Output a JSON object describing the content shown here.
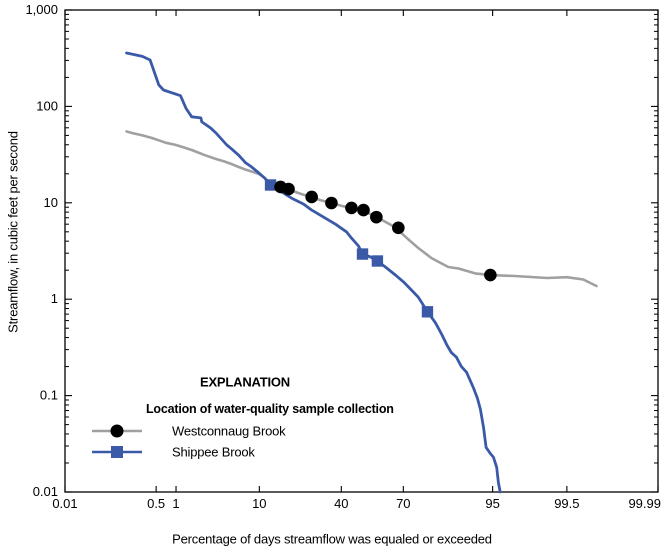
{
  "figure": {
    "y_axis_title": "Streamflow, in cubic feet per second",
    "x_axis_title": "Percentage of days streamflow was equaled or exceeded"
  },
  "legend": {
    "title": "EXPLANATION",
    "subtitle": "Location of water-quality sample collection",
    "entries": [
      {
        "label": "Westconnaug Brook",
        "marker": "circle",
        "marker_color": "#000000",
        "line_color": "#a0a0a0"
      },
      {
        "label": "Shippee Brook",
        "marker": "square",
        "marker_color": "#3a5aa8",
        "line_color": "#3a5aa8"
      }
    ]
  },
  "colors": {
    "westconnaug_line": "#a0a0a0",
    "shippee_line": "#3a5aa8",
    "sample_circle": "#000000",
    "sample_square": "#3a5aa8",
    "frame": "#000000",
    "text": "#000000"
  },
  "chart_data": {
    "type": "line",
    "x_scale": "normal-probability",
    "y_scale": "log",
    "xlim": [
      0.01,
      99.99
    ],
    "ylim": [
      0.01,
      1000
    ],
    "grid": false,
    "legend_position": "inside-lower-left",
    "x_ticks": [
      0.01,
      0.5,
      1,
      10,
      40,
      70,
      95,
      99.5,
      99.99
    ],
    "x_tick_labels": [
      "0.01",
      "0.5",
      "1",
      "10",
      "40",
      "70",
      "95",
      "99.5",
      "99.99"
    ],
    "y_ticks": [
      1000,
      100,
      10,
      1,
      0.1,
      0.01
    ],
    "y_tick_labels": [
      "1,000",
      "100",
      "10",
      "1",
      "0.1",
      "0.01"
    ],
    "xlabel": "Percentage of days streamflow was equaled or exceeded",
    "ylabel": "Streamflow, in cubic feet per second",
    "series": [
      {
        "name": "Westconnaug Brook",
        "color": "#a0a0a0",
        "points": [
          [
            0.16,
            55
          ],
          [
            0.2,
            53
          ],
          [
            0.3,
            50
          ],
          [
            0.43,
            47
          ],
          [
            0.55,
            44.5
          ],
          [
            0.7,
            42
          ],
          [
            1.0,
            39.8
          ],
          [
            1.3,
            37.5
          ],
          [
            1.66,
            35.3
          ],
          [
            2.4,
            31.5
          ],
          [
            3.4,
            28.5
          ],
          [
            4.2,
            27
          ],
          [
            5,
            25.5
          ],
          [
            6,
            23.8
          ],
          [
            7,
            22.4
          ],
          [
            8.5,
            21
          ],
          [
            9.9,
            19.9
          ],
          [
            11,
            18.5
          ],
          [
            11.7,
            17.3
          ],
          [
            13,
            16.2
          ],
          [
            14.9,
            14.9
          ],
          [
            16.75,
            14.25
          ],
          [
            19,
            13.4
          ],
          [
            21.5,
            12.6
          ],
          [
            24,
            12
          ],
          [
            26.6,
            11.5
          ],
          [
            30,
            10.7
          ],
          [
            35.3,
            9.95
          ],
          [
            40,
            9.3
          ],
          [
            45,
            8.85
          ],
          [
            48,
            8.6
          ],
          [
            51,
            8.4
          ],
          [
            54,
            7.7
          ],
          [
            57.4,
            7.1
          ],
          [
            62,
            6.3
          ],
          [
            65,
            5.8
          ],
          [
            67.8,
            5.2
          ],
          [
            72,
            4.2
          ],
          [
            76.2,
            3.4
          ],
          [
            81,
            2.67
          ],
          [
            86.2,
            2.16
          ],
          [
            88.8,
            2.08
          ],
          [
            92.3,
            1.85
          ],
          [
            94.7,
            1.78
          ],
          [
            97.3,
            1.74
          ],
          [
            99.0,
            1.66
          ],
          [
            99.5,
            1.69
          ],
          [
            99.73,
            1.6
          ],
          [
            99.84,
            1.37
          ]
        ]
      },
      {
        "name": "Shippee Brook",
        "color": "#3a5aa8",
        "points": [
          [
            0.16,
            358
          ],
          [
            0.3,
            330
          ],
          [
            0.4,
            303
          ],
          [
            0.55,
            167
          ],
          [
            0.65,
            148
          ],
          [
            1.16,
            129
          ],
          [
            1.39,
            95
          ],
          [
            1.66,
            78
          ],
          [
            2.2,
            76
          ],
          [
            2.26,
            69
          ],
          [
            2.9,
            60
          ],
          [
            3.4,
            53
          ],
          [
            4.55,
            39.8
          ],
          [
            5.2,
            36
          ],
          [
            6.2,
            31
          ],
          [
            7.3,
            26
          ],
          [
            8.2,
            24
          ],
          [
            9.9,
            20.4
          ],
          [
            11.2,
            18.1
          ],
          [
            12.7,
            15.3
          ],
          [
            14.9,
            13.6
          ],
          [
            19,
            11.2
          ],
          [
            23.4,
            9.7
          ],
          [
            26.6,
            8.4
          ],
          [
            31.7,
            7.1
          ],
          [
            37.2,
            6.0
          ],
          [
            42.5,
            5.0
          ],
          [
            45,
            4.3
          ],
          [
            48.5,
            3.56
          ],
          [
            50.5,
            2.94
          ],
          [
            54.5,
            2.74
          ],
          [
            57.9,
            2.49
          ],
          [
            62.3,
            2.11
          ],
          [
            66.5,
            1.78
          ],
          [
            70.1,
            1.51
          ],
          [
            73.4,
            1.25
          ],
          [
            76.2,
            1.05
          ],
          [
            77.3,
            0.94
          ],
          [
            79.6,
            0.74
          ],
          [
            82.3,
            0.57
          ],
          [
            84.3,
            0.43
          ],
          [
            85.8,
            0.335
          ],
          [
            87,
            0.28
          ],
          [
            88.3,
            0.25
          ],
          [
            89.5,
            0.2
          ],
          [
            90.6,
            0.175
          ],
          [
            91.4,
            0.142
          ],
          [
            92,
            0.12
          ],
          [
            92.7,
            0.094
          ],
          [
            93.2,
            0.072
          ],
          [
            93.7,
            0.047
          ],
          [
            94.1,
            0.029
          ],
          [
            94.7,
            0.025
          ],
          [
            95.1,
            0.023
          ],
          [
            95.5,
            0.018
          ],
          [
            95.7,
            0.0125
          ],
          [
            95.9,
            0.01
          ]
        ]
      }
    ],
    "markers": [
      {
        "name": "Shippee Brook water-quality samples",
        "shape": "square",
        "color": "#3a5aa8",
        "points": [
          [
            12.7,
            15.3
          ],
          [
            50.5,
            2.94
          ],
          [
            57.9,
            2.49
          ],
          [
            79.6,
            0.74
          ]
        ]
      },
      {
        "name": "Westconnaug Brook water-quality samples",
        "shape": "circle",
        "color": "#000000",
        "points": [
          [
            15.5,
            14.6
          ],
          [
            18,
            13.9
          ],
          [
            26.6,
            11.5
          ],
          [
            35.3,
            9.95
          ],
          [
            45,
            8.85
          ],
          [
            51,
            8.4
          ],
          [
            57.4,
            7.1
          ],
          [
            67.8,
            5.5
          ],
          [
            94.7,
            1.78
          ]
        ]
      }
    ]
  }
}
